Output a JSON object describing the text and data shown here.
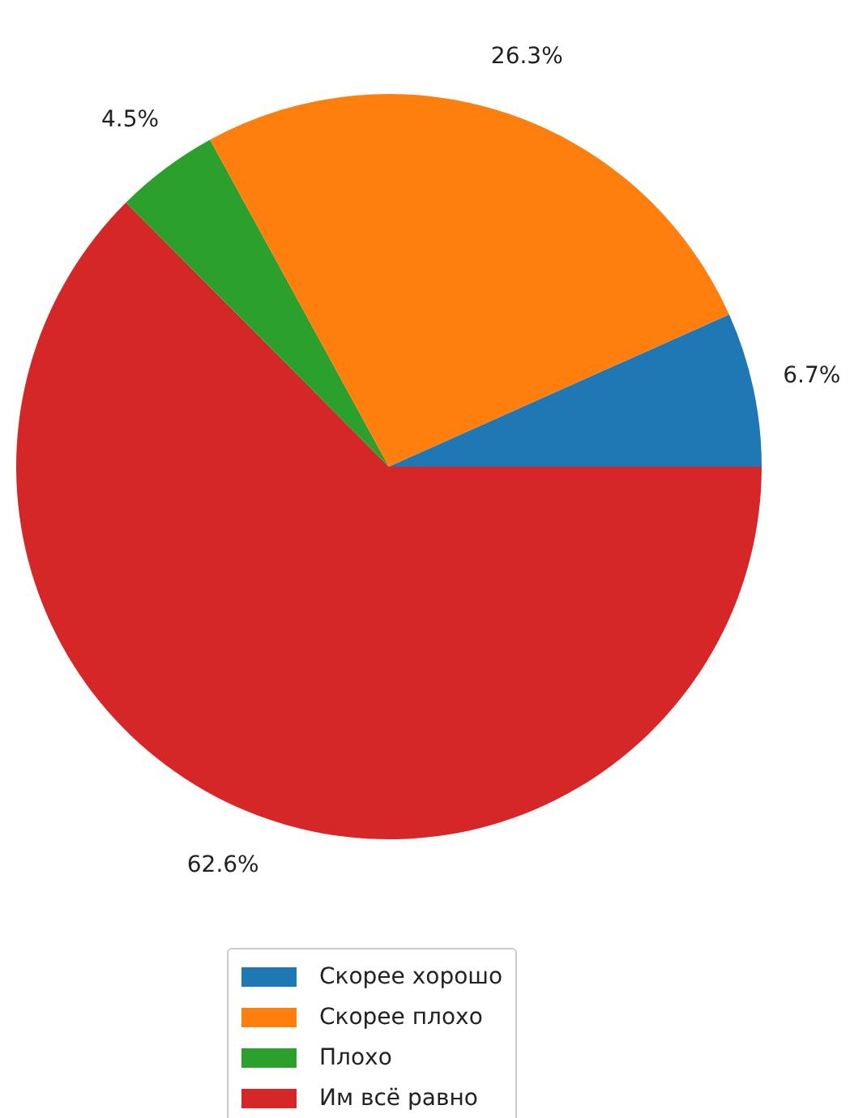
{
  "chart_data": {
    "type": "pie",
    "categories": [
      "Скорее хорошо",
      "Скорее плохо",
      "Плохо",
      "Им всё равно"
    ],
    "values": [
      6.7,
      26.3,
      4.5,
      62.6
    ],
    "colors": [
      "#1f77b4",
      "#ff7f0e",
      "#2ca02c",
      "#d62728"
    ],
    "value_labels": [
      "6.7%",
      "26.3%",
      "4.5%",
      "62.6%"
    ],
    "legend": "bottom"
  }
}
